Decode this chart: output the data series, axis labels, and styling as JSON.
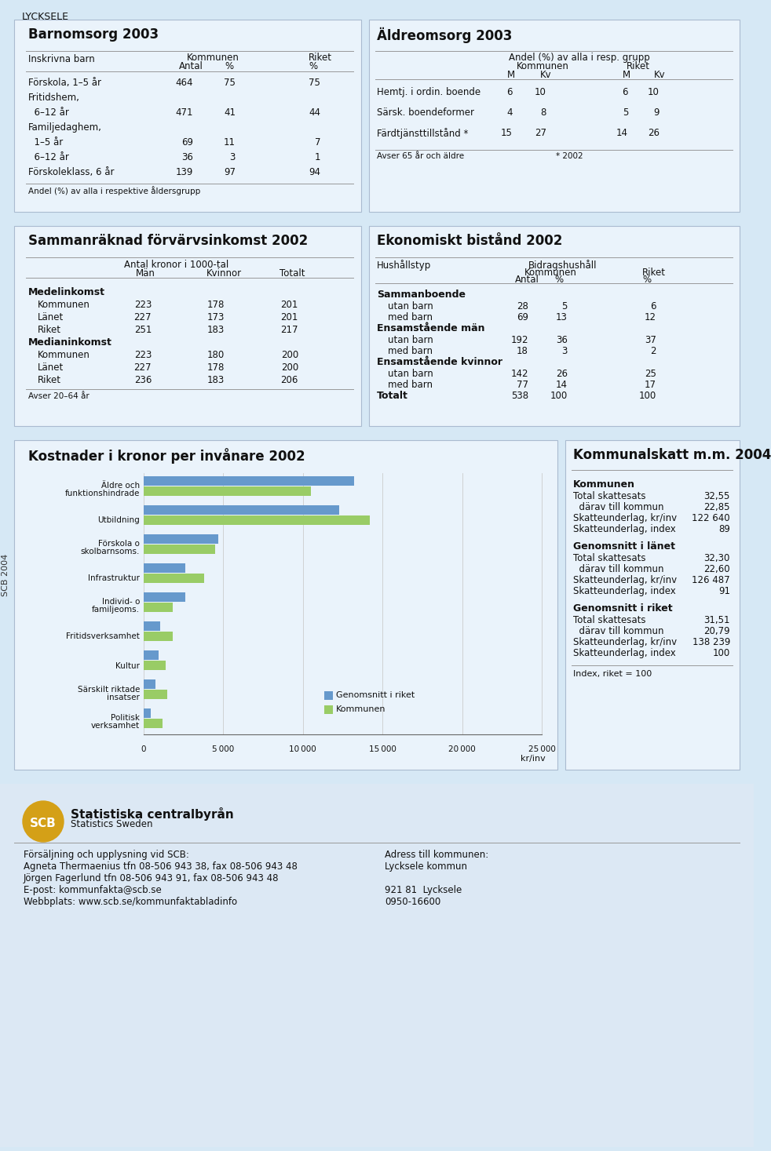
{
  "title": "LYCKSELE",
  "bg_color": "#d6e8f5",
  "box_bg": "#eaf3fb",
  "white": "#ffffff",
  "barnomsorg": {
    "title": "Barnomsorg 2003",
    "rows": [
      [
        "Förskola, 1–5 år",
        "464",
        "75",
        "75"
      ],
      [
        "Fritidshem,",
        "",
        "",
        ""
      ],
      [
        "  6–12 år",
        "471",
        "41",
        "44"
      ],
      [
        "Familjedaghem,",
        "",
        "",
        ""
      ],
      [
        "  1–5 år",
        "69",
        "11",
        "7"
      ],
      [
        "  6–12 år",
        "36",
        "3",
        "1"
      ],
      [
        "Förskoleklass, 6 år",
        "139",
        "97",
        "94"
      ]
    ],
    "footnote": "Andel (%) av alla i respektive åldersgrupp"
  },
  "aldreomsorg": {
    "title": "Äldreomsorg 2003",
    "rows": [
      [
        "Hemtj. i ordin. boende",
        "6",
        "10",
        "6",
        "10"
      ],
      [
        "Särsk. boendeformer",
        "4",
        "8",
        "5",
        "9"
      ],
      [
        "Färdtjänsttillstånd *",
        "15",
        "27",
        "14",
        "26"
      ]
    ],
    "footnote1": "Avser 65 år och äldre",
    "footnote2": "* 2002"
  },
  "sammanraknad": {
    "title": "Sammanräknad förvärvsinkomst 2002",
    "cols": [
      "Män",
      "Kvinnor",
      "Totalt"
    ],
    "sections": [
      {
        "label": "Medelinkomst",
        "rows": [
          [
            "Kommunen",
            "223",
            "178",
            "201"
          ],
          [
            "Länet",
            "227",
            "173",
            "201"
          ],
          [
            "Riket",
            "251",
            "183",
            "217"
          ]
        ]
      },
      {
        "label": "Medianinkomst",
        "rows": [
          [
            "Kommunen",
            "223",
            "180",
            "200"
          ],
          [
            "Länet",
            "227",
            "178",
            "200"
          ],
          [
            "Riket",
            "236",
            "183",
            "206"
          ]
        ]
      }
    ],
    "footnote": "Avser 20–64 år"
  },
  "ekonomiskt": {
    "title": "Ekonomiskt bistånd 2002",
    "sections": [
      {
        "label": "Sammanboende",
        "rows": [
          [
            "utan barn",
            "28",
            "5",
            "6"
          ],
          [
            "med barn",
            "69",
            "13",
            "12"
          ]
        ]
      },
      {
        "label": "Ensamstående män",
        "rows": [
          [
            "utan barn",
            "192",
            "36",
            "37"
          ],
          [
            "med barn",
            "18",
            "3",
            "2"
          ]
        ]
      },
      {
        "label": "Ensamstående kvinnor",
        "rows": [
          [
            "utan barn",
            "142",
            "26",
            "25"
          ],
          [
            "med barn",
            "77",
            "14",
            "17"
          ]
        ]
      },
      {
        "label": "Totalt",
        "rows": [
          [
            "",
            "538",
            "100",
            "100"
          ]
        ]
      }
    ]
  },
  "kostnader": {
    "title": "Kostnader i kronor per invånare 2002",
    "categories": [
      "Äldre och\nfunktionshindrade",
      "Utbildning",
      "Förskola o\nskolbarnsoms.",
      "Infrastruktur",
      "Individ- o\nfamiljeoms.",
      "Fritidsverksamhet",
      "Kultur",
      "Särskilt riktade\ninsatser",
      "Politisk\nverksamhet"
    ],
    "riket_values": [
      13200,
      12300,
      4700,
      2600,
      2600,
      1050,
      950,
      750,
      450
    ],
    "kommun_values": [
      10500,
      14200,
      4500,
      3800,
      1800,
      1800,
      1400,
      1500,
      1200
    ],
    "riket_color": "#6699cc",
    "kommun_color": "#99cc66",
    "xlabel": "kr/inv",
    "xticks": [
      0,
      5000,
      10000,
      15000,
      20000,
      25000
    ],
    "legend": [
      "Genomsnitt i riket",
      "Kommunen"
    ]
  },
  "kommunalskatt": {
    "title": "Kommunalskatt m.m. 2004",
    "sections": [
      {
        "label": "Kommunen",
        "rows": [
          [
            "Total skattesats",
            "32,55"
          ],
          [
            "  därav till kommun",
            "22,85"
          ],
          [
            "Skatteunderlag, kr/inv",
            "122 640"
          ],
          [
            "Skatteunderlag, index",
            "89"
          ]
        ]
      },
      {
        "label": "Genomsnitt i länet",
        "rows": [
          [
            "Total skattesats",
            "32,30"
          ],
          [
            "  därav till kommun",
            "22,60"
          ],
          [
            "Skatteunderlag, kr/inv",
            "126 487"
          ],
          [
            "Skatteunderlag, index",
            "91"
          ]
        ]
      },
      {
        "label": "Genomsnitt i riket",
        "rows": [
          [
            "Total skattesats",
            "31,51"
          ],
          [
            "  därav till kommun",
            "20,79"
          ],
          [
            "Skatteunderlag, kr/inv",
            "138 239"
          ],
          [
            "Skatteunderlag, index",
            "100"
          ]
        ]
      }
    ],
    "footnote": "Index, riket = 100"
  },
  "footer": {
    "left_lines": [
      "Försäljning och upplysning vid SCB:",
      "Agneta Thermaenius tfn 08-506 943 38, fax 08-506 943 48",
      "Jörgen Fagerlund tfn 08-506 943 91, fax 08-506 943 48",
      "E-post: kommunfakta@scb.se",
      "Webbplats: www.scb.se/kommunfaktabladinfo"
    ],
    "right_lines": [
      "Adress till kommunen:",
      "Lycksele kommun",
      "",
      "921 81  Lycksele",
      "0950-16600"
    ],
    "side_text": "SCB 2004"
  }
}
